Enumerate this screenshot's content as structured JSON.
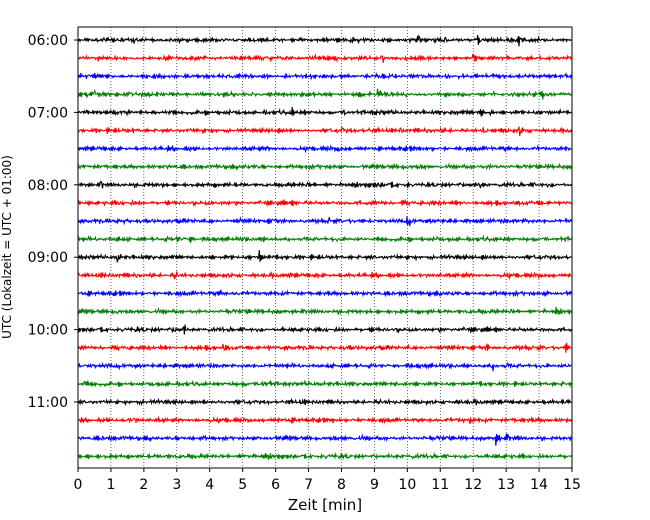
{
  "chart_data": {
    "type": "line",
    "chart_kind": "seismogram helicorder",
    "xlabel": "Zeit  [min]",
    "ylabel": "UTC (Lokalzeit = UTC + 01:00)",
    "xlim": [
      0,
      15
    ],
    "x_ticks": [
      "0",
      "1",
      "2",
      "3",
      "4",
      "5",
      "6",
      "7",
      "8",
      "9",
      "10",
      "11",
      "12",
      "13",
      "14",
      "15"
    ],
    "y_ticks": [
      "06:00",
      "07:00",
      "08:00",
      "09:00",
      "10:00",
      "11:00"
    ],
    "grid": "vertical dotted at each minute",
    "trace_minutes": 15,
    "trace_count": 24,
    "start_time": "06:00",
    "colors": [
      "#000000",
      "#ff0000",
      "#0000ff",
      "#008000"
    ]
  }
}
